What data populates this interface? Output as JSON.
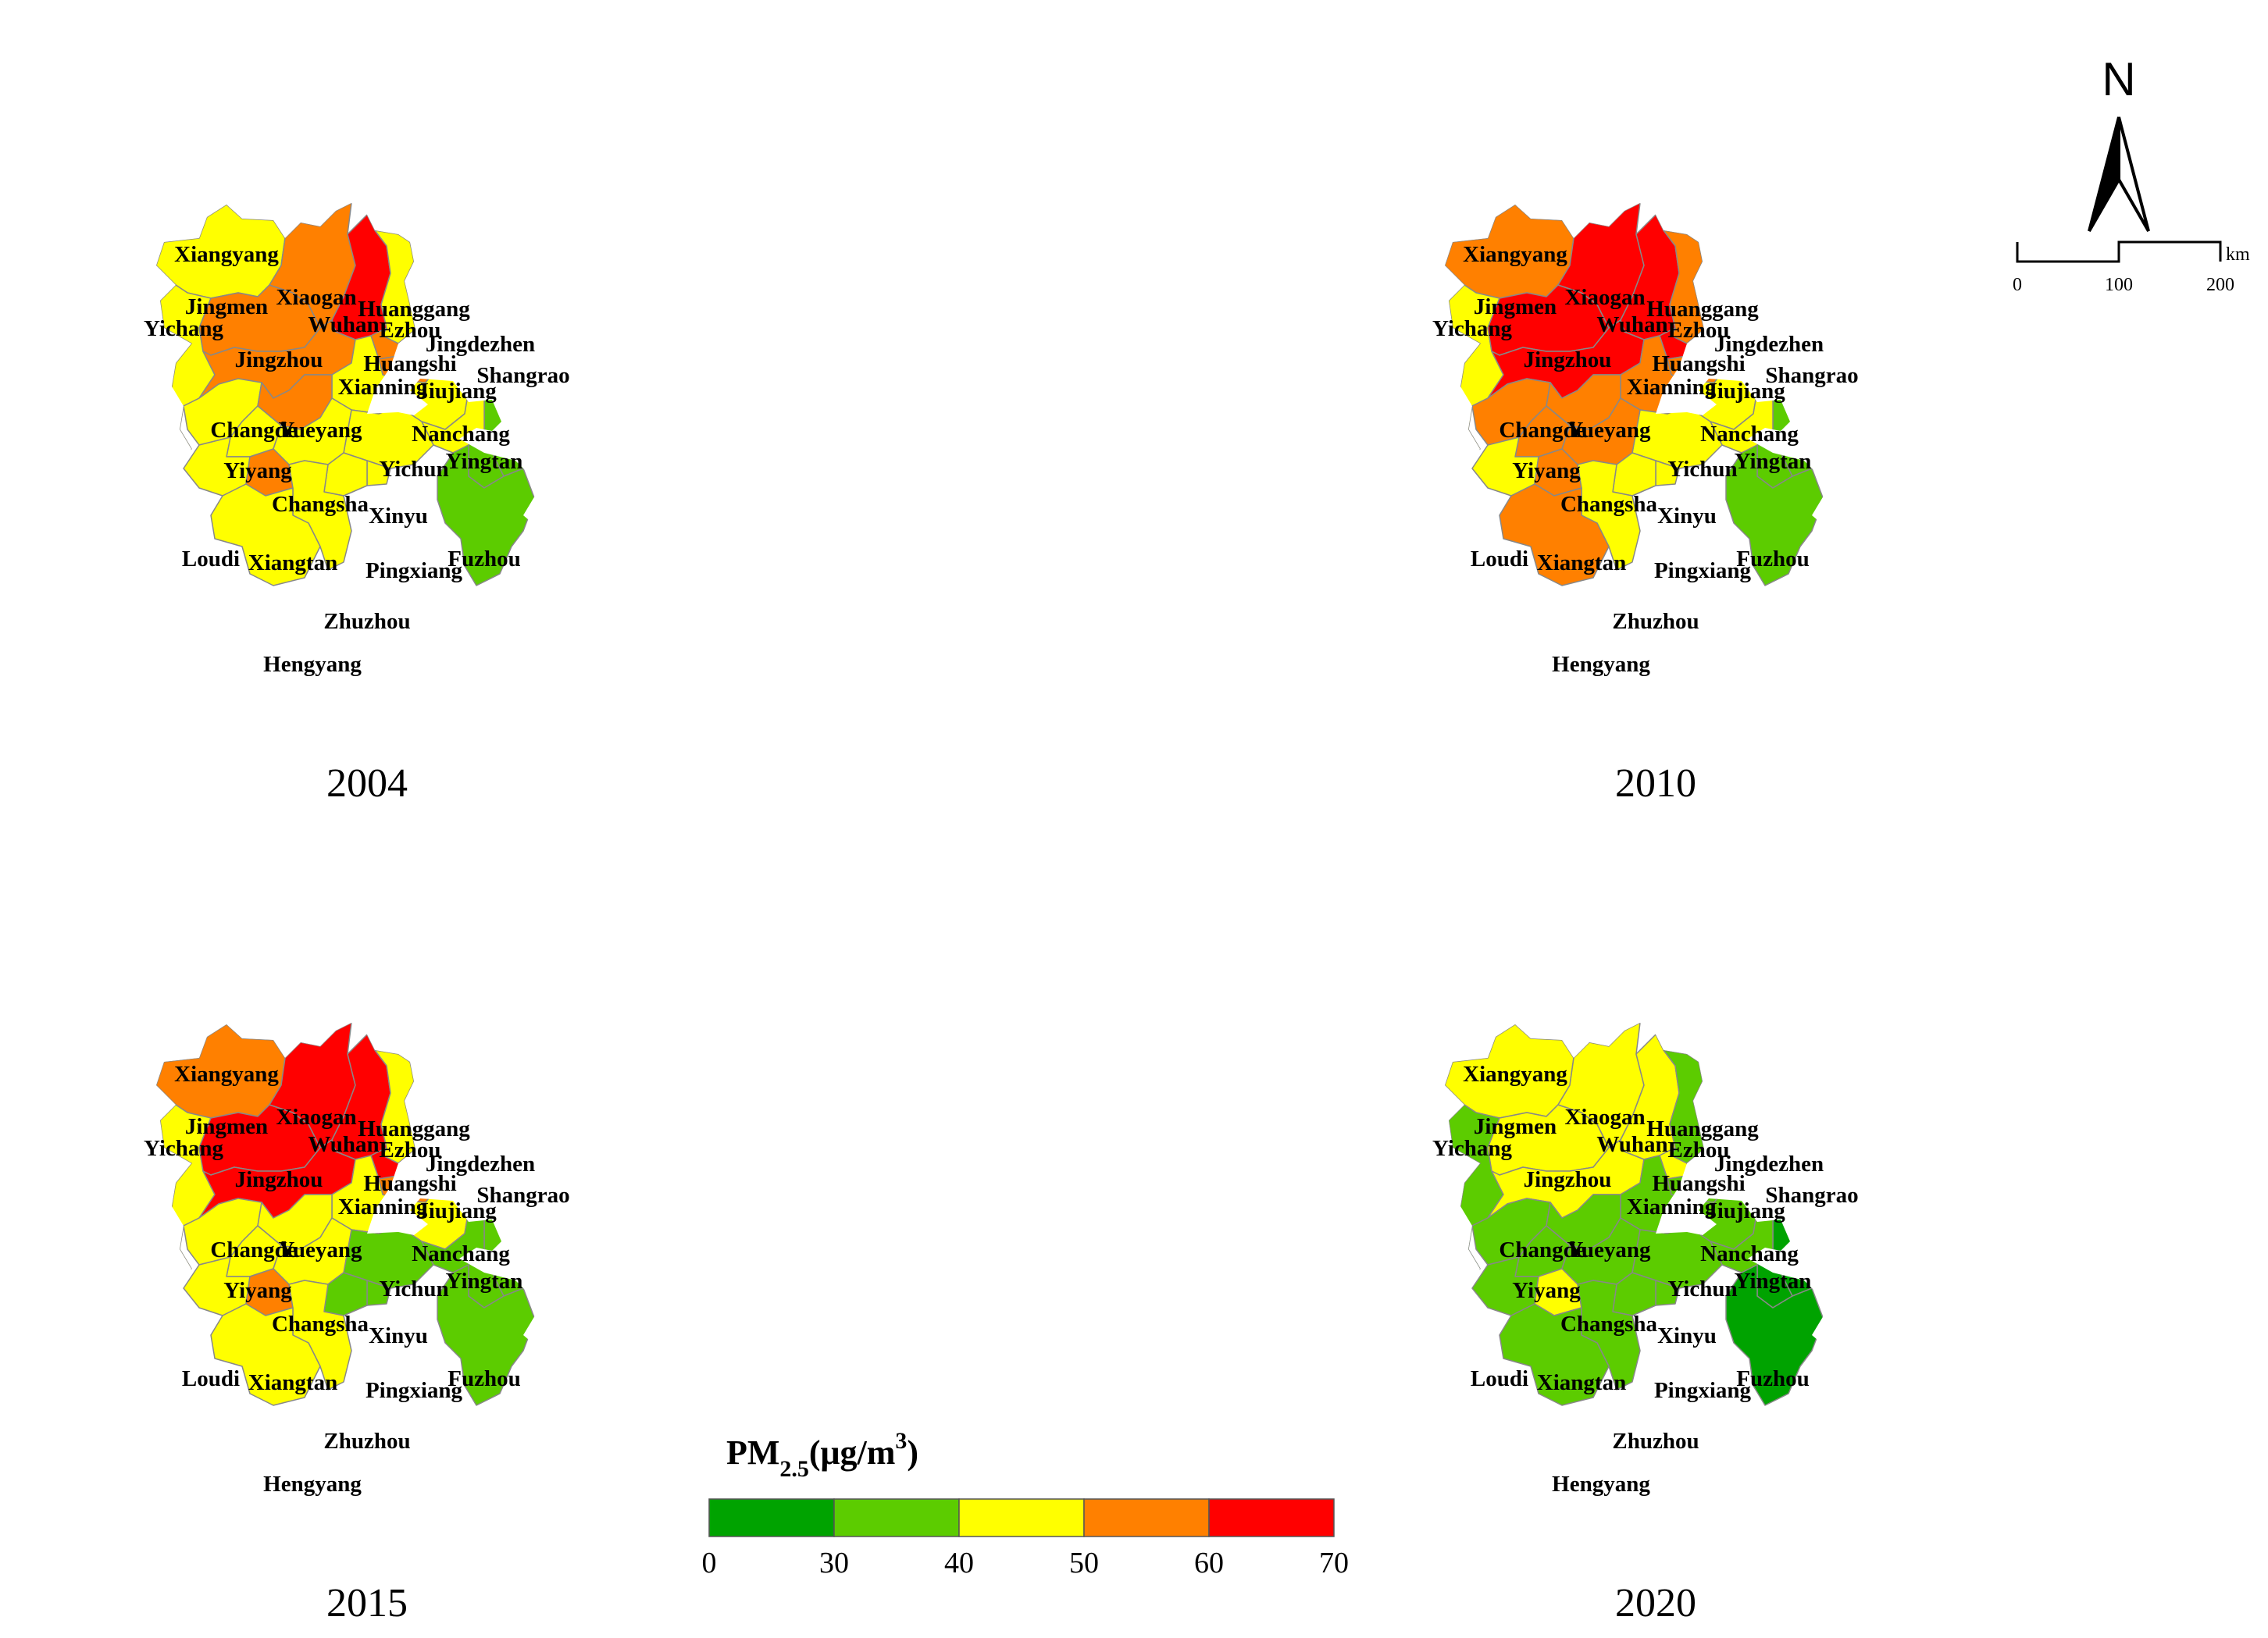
{
  "colors": {
    "class_0_30": "#00a300",
    "class_30_40": "#5ccc00",
    "class_40_50": "#ffff00",
    "class_50_60": "#ff8000",
    "class_60_70": "#ff0000",
    "boundary": "#888888"
  },
  "panels": [
    {
      "year": "2004",
      "cities": [
        {
          "name": "Xiangyang",
          "class": "class_40_50"
        },
        {
          "name": "Yichang",
          "class": "class_40_50"
        },
        {
          "name": "Jingmen",
          "class": "class_50_60"
        },
        {
          "name": "Xiaogan",
          "class": "class_50_60"
        },
        {
          "name": "Wuhan",
          "class": "class_60_70"
        },
        {
          "name": "Huanggang",
          "class": "class_40_50"
        },
        {
          "name": "Ezhou",
          "class": "class_50_60"
        },
        {
          "name": "Jingzhou",
          "class": "class_50_60"
        },
        {
          "name": "Huangshi",
          "class": "class_50_60"
        },
        {
          "name": "Xianning",
          "class": "class_40_50"
        },
        {
          "name": "Jiujiang",
          "class": "class_40_50"
        },
        {
          "name": "Jingdezhen",
          "class": "class_30_40"
        },
        {
          "name": "Shangrao",
          "class": "class_30_40"
        },
        {
          "name": "Changde",
          "class": "class_40_50"
        },
        {
          "name": "Yueyang",
          "class": "class_50_60"
        },
        {
          "name": "Nanchang",
          "class": "class_40_50"
        },
        {
          "name": "Yingtan",
          "class": "class_30_40"
        },
        {
          "name": "Yiyang",
          "class": "class_40_50"
        },
        {
          "name": "Yichun",
          "class": "class_40_50"
        },
        {
          "name": "Changsha",
          "class": "class_40_50"
        },
        {
          "name": "Xinyu",
          "class": "class_40_50"
        },
        {
          "name": "Fuzhou",
          "class": "class_30_40"
        },
        {
          "name": "Loudi",
          "class": "class_40_50"
        },
        {
          "name": "Xiangtan",
          "class": "class_50_60"
        },
        {
          "name": "Pingxiang",
          "class": "class_40_50"
        },
        {
          "name": "Zhuzhou",
          "class": "class_40_50"
        },
        {
          "name": "Hengyang",
          "class": "class_40_50"
        }
      ]
    },
    {
      "year": "2010",
      "cities": [
        {
          "name": "Xiangyang",
          "class": "class_50_60"
        },
        {
          "name": "Yichang",
          "class": "class_40_50"
        },
        {
          "name": "Jingmen",
          "class": "class_60_70"
        },
        {
          "name": "Xiaogan",
          "class": "class_60_70"
        },
        {
          "name": "Wuhan",
          "class": "class_60_70"
        },
        {
          "name": "Huanggang",
          "class": "class_50_60"
        },
        {
          "name": "Ezhou",
          "class": "class_60_70"
        },
        {
          "name": "Jingzhou",
          "class": "class_60_70"
        },
        {
          "name": "Huangshi",
          "class": "class_50_60"
        },
        {
          "name": "Xianning",
          "class": "class_50_60"
        },
        {
          "name": "Jiujiang",
          "class": "class_40_50"
        },
        {
          "name": "Jingdezhen",
          "class": "class_30_40"
        },
        {
          "name": "Shangrao",
          "class": "class_30_40"
        },
        {
          "name": "Changde",
          "class": "class_50_60"
        },
        {
          "name": "Yueyang",
          "class": "class_50_60"
        },
        {
          "name": "Nanchang",
          "class": "class_40_50"
        },
        {
          "name": "Yingtan",
          "class": "class_30_40"
        },
        {
          "name": "Yiyang",
          "class": "class_50_60"
        },
        {
          "name": "Yichun",
          "class": "class_40_50"
        },
        {
          "name": "Changsha",
          "class": "class_50_60"
        },
        {
          "name": "Xinyu",
          "class": "class_40_50"
        },
        {
          "name": "Fuzhou",
          "class": "class_30_40"
        },
        {
          "name": "Loudi",
          "class": "class_40_50"
        },
        {
          "name": "Xiangtan",
          "class": "class_50_60"
        },
        {
          "name": "Pingxiang",
          "class": "class_40_50"
        },
        {
          "name": "Zhuzhou",
          "class": "class_40_50"
        },
        {
          "name": "Hengyang",
          "class": "class_50_60"
        }
      ]
    },
    {
      "year": "2015",
      "cities": [
        {
          "name": "Xiangyang",
          "class": "class_50_60"
        },
        {
          "name": "Yichang",
          "class": "class_40_50"
        },
        {
          "name": "Jingmen",
          "class": "class_60_70"
        },
        {
          "name": "Xiaogan",
          "class": "class_60_70"
        },
        {
          "name": "Wuhan",
          "class": "class_60_70"
        },
        {
          "name": "Huanggang",
          "class": "class_40_50"
        },
        {
          "name": "Ezhou",
          "class": "class_60_70"
        },
        {
          "name": "Jingzhou",
          "class": "class_60_70"
        },
        {
          "name": "Huangshi",
          "class": "class_50_60"
        },
        {
          "name": "Xianning",
          "class": "class_40_50"
        },
        {
          "name": "Jiujiang",
          "class": "class_40_50"
        },
        {
          "name": "Jingdezhen",
          "class": "class_30_40"
        },
        {
          "name": "Shangrao",
          "class": "class_30_40"
        },
        {
          "name": "Changde",
          "class": "class_40_50"
        },
        {
          "name": "Yueyang",
          "class": "class_40_50"
        },
        {
          "name": "Nanchang",
          "class": "class_30_40"
        },
        {
          "name": "Yingtan",
          "class": "class_30_40"
        },
        {
          "name": "Yiyang",
          "class": "class_40_50"
        },
        {
          "name": "Yichun",
          "class": "class_30_40"
        },
        {
          "name": "Changsha",
          "class": "class_40_50"
        },
        {
          "name": "Xinyu",
          "class": "class_30_40"
        },
        {
          "name": "Fuzhou",
          "class": "class_30_40"
        },
        {
          "name": "Loudi",
          "class": "class_40_50"
        },
        {
          "name": "Xiangtan",
          "class": "class_50_60"
        },
        {
          "name": "Pingxiang",
          "class": "class_30_40"
        },
        {
          "name": "Zhuzhou",
          "class": "class_40_50"
        },
        {
          "name": "Hengyang",
          "class": "class_40_50"
        }
      ]
    },
    {
      "year": "2020",
      "cities": [
        {
          "name": "Xiangyang",
          "class": "class_40_50"
        },
        {
          "name": "Yichang",
          "class": "class_30_40"
        },
        {
          "name": "Jingmen",
          "class": "class_40_50"
        },
        {
          "name": "Xiaogan",
          "class": "class_40_50"
        },
        {
          "name": "Wuhan",
          "class": "class_40_50"
        },
        {
          "name": "Huanggang",
          "class": "class_30_40"
        },
        {
          "name": "Ezhou",
          "class": "class_40_50"
        },
        {
          "name": "Jingzhou",
          "class": "class_40_50"
        },
        {
          "name": "Huangshi",
          "class": "class_30_40"
        },
        {
          "name": "Xianning",
          "class": "class_30_40"
        },
        {
          "name": "Jiujiang",
          "class": "class_30_40"
        },
        {
          "name": "Jingdezhen",
          "class": "class_0_30"
        },
        {
          "name": "Shangrao",
          "class": "class_0_30"
        },
        {
          "name": "Changde",
          "class": "class_30_40"
        },
        {
          "name": "Yueyang",
          "class": "class_30_40"
        },
        {
          "name": "Nanchang",
          "class": "class_30_40"
        },
        {
          "name": "Yingtan",
          "class": "class_0_30"
        },
        {
          "name": "Yiyang",
          "class": "class_30_40"
        },
        {
          "name": "Yichun",
          "class": "class_30_40"
        },
        {
          "name": "Changsha",
          "class": "class_30_40"
        },
        {
          "name": "Xinyu",
          "class": "class_30_40"
        },
        {
          "name": "Fuzhou",
          "class": "class_0_30"
        },
        {
          "name": "Loudi",
          "class": "class_30_40"
        },
        {
          "name": "Xiangtan",
          "class": "class_40_50"
        },
        {
          "name": "Pingxiang",
          "class": "class_30_40"
        },
        {
          "name": "Zhuzhou",
          "class": "class_30_40"
        },
        {
          "name": "Hengyang",
          "class": "class_30_40"
        }
      ]
    }
  ],
  "legend": {
    "title_main": "PM",
    "title_sub": "2.5",
    "title_unit_pre": "(μg/m",
    "title_unit_sup": "3",
    "title_unit_post": ")",
    "classes": [
      "class_0_30",
      "class_30_40",
      "class_40_50",
      "class_50_60",
      "class_60_70"
    ],
    "ticks": [
      "0",
      "30",
      "40",
      "50",
      "60",
      "70"
    ]
  },
  "north_arrow": {
    "label": "N",
    "icon": "north-arrow-icon"
  },
  "scale_bar": {
    "ticks": [
      "0",
      "100",
      "200"
    ],
    "unit": "km"
  }
}
